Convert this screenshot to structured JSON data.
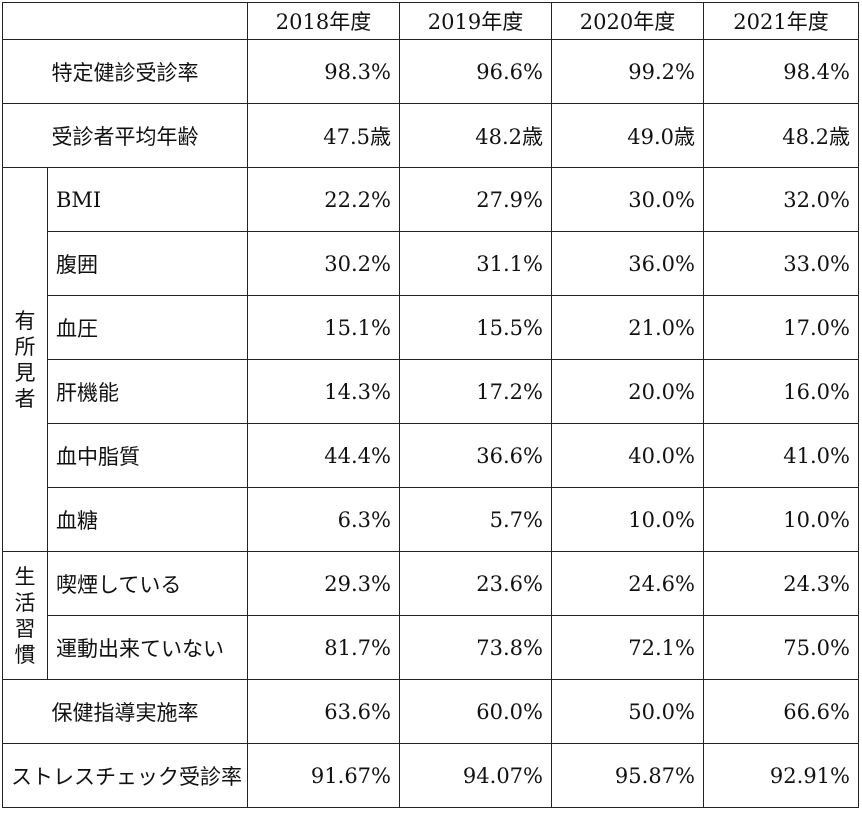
{
  "header": {
    "years": [
      "2018年度",
      "2019年度",
      "2020年度",
      "2021年度"
    ]
  },
  "rows_top": [
    {
      "label": "特定健診受診率",
      "values": [
        "98.3%",
        "96.6%",
        "99.2%",
        "98.4%"
      ]
    },
    {
      "label": "受診者平均年齢",
      "values": [
        "47.5歳",
        "48.2歳",
        "49.0歳",
        "48.2歳"
      ]
    }
  ],
  "findings": {
    "group_label_chars": [
      "有",
      "所",
      "見",
      "者"
    ],
    "rows": [
      {
        "label": "BMI",
        "values": [
          "22.2%",
          "27.9%",
          "30.0%",
          "32.0%"
        ]
      },
      {
        "label": "腹囲",
        "values": [
          "30.2%",
          "31.1%",
          "36.0%",
          "33.0%"
        ]
      },
      {
        "label": "血圧",
        "values": [
          "15.1%",
          "15.5%",
          "21.0%",
          "17.0%"
        ]
      },
      {
        "label": "肝機能",
        "values": [
          "14.3%",
          "17.2%",
          "20.0%",
          "16.0%"
        ]
      },
      {
        "label": "血中脂質",
        "values": [
          "44.4%",
          "36.6%",
          "40.0%",
          "41.0%"
        ]
      },
      {
        "label": "血糖",
        "values": [
          "6.3%",
          "5.7%",
          "10.0%",
          "10.0%"
        ]
      }
    ]
  },
  "lifestyle": {
    "group_label_chars": [
      "生",
      "活",
      "習",
      "慣"
    ],
    "rows": [
      {
        "label": "喫煙している",
        "values": [
          "29.3%",
          "23.6%",
          "24.6%",
          "24.3%"
        ]
      },
      {
        "label": "運動出来ていない",
        "values": [
          "81.7%",
          "73.8%",
          "72.1%",
          "75.0%"
        ]
      }
    ]
  },
  "rows_bottom": [
    {
      "label": "保健指導実施率",
      "values": [
        "63.6%",
        "60.0%",
        "50.0%",
        "66.6%"
      ]
    },
    {
      "label": "ストレスチェック受診率",
      "values": [
        "91.67%",
        "94.07%",
        "95.87%",
        "92.91%"
      ]
    }
  ]
}
